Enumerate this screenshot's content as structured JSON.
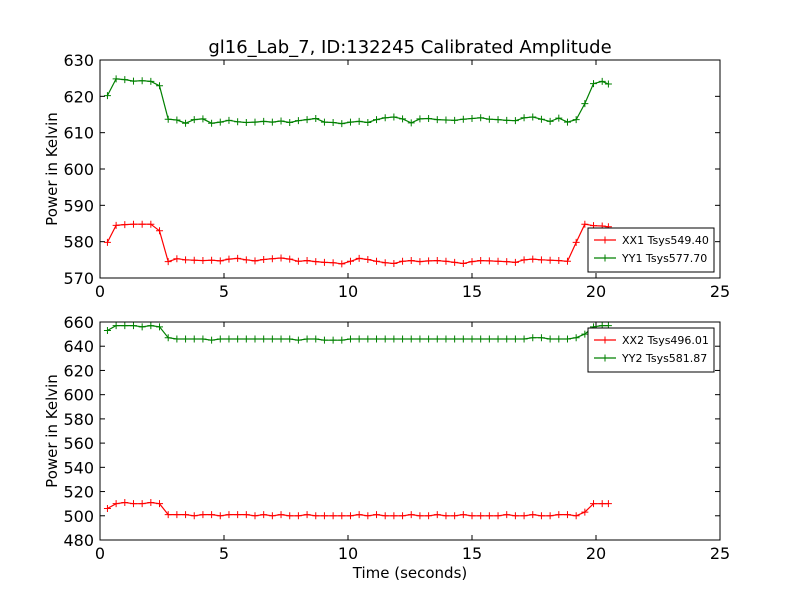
{
  "title": "gl16_Lab_7, ID:132245 Calibrated Amplitude",
  "chart_data": [
    {
      "type": "line",
      "title": "gl16_Lab_7, ID:132245 Calibrated Amplitude",
      "xlabel": "",
      "ylabel": "Power in Kelvin",
      "xlim": [
        0,
        25
      ],
      "ylim": [
        570,
        630
      ],
      "xticks": [
        "0",
        "5",
        "10",
        "15",
        "20",
        "25"
      ],
      "yticks": [
        "570",
        "580",
        "590",
        "600",
        "610",
        "620",
        "630"
      ],
      "grid": false,
      "legend_position": "lower-right",
      "x": [
        0.3,
        0.65,
        1.0,
        1.35,
        1.7,
        2.05,
        2.4,
        2.75,
        3.1,
        3.45,
        3.8,
        4.15,
        4.5,
        4.85,
        5.2,
        5.55,
        5.9,
        6.25,
        6.6,
        6.95,
        7.3,
        7.65,
        8.0,
        8.35,
        8.7,
        9.05,
        9.4,
        9.75,
        10.1,
        10.45,
        10.8,
        11.15,
        11.5,
        11.85,
        12.2,
        12.55,
        12.9,
        13.25,
        13.6,
        13.95,
        14.3,
        14.65,
        15.0,
        15.35,
        15.7,
        16.05,
        16.4,
        16.75,
        17.1,
        17.45,
        17.8,
        18.15,
        18.5,
        18.85,
        19.2,
        19.55,
        19.9,
        20.25,
        20.5
      ],
      "series": [
        {
          "name": "XX1 Tsys549.40",
          "color": "#ff0000",
          "values": [
            579.8,
            584.5,
            584.7,
            584.8,
            584.8,
            584.8,
            583.0,
            574.5,
            575.3,
            575.0,
            574.9,
            574.8,
            574.9,
            574.7,
            575.2,
            575.4,
            575.0,
            574.7,
            575.1,
            575.3,
            575.5,
            575.2,
            574.6,
            574.8,
            574.5,
            574.3,
            574.2,
            573.9,
            574.6,
            575.4,
            575.1,
            574.6,
            574.2,
            574.0,
            574.6,
            574.8,
            574.5,
            574.7,
            574.8,
            574.6,
            574.3,
            574.0,
            574.5,
            574.8,
            574.7,
            574.6,
            574.5,
            574.3,
            575.0,
            575.2,
            575.0,
            574.9,
            574.8,
            574.6,
            579.8,
            584.8,
            584.4,
            584.3,
            584.1
          ]
        },
        {
          "name": "YY1 Tsys577.70",
          "color": "#008000",
          "values": [
            620.2,
            624.8,
            624.6,
            624.2,
            624.3,
            624.1,
            622.9,
            613.7,
            613.5,
            612.6,
            613.6,
            613.8,
            612.6,
            612.9,
            613.4,
            613.0,
            612.8,
            612.9,
            613.1,
            612.9,
            613.2,
            612.8,
            613.3,
            613.6,
            613.9,
            612.9,
            612.8,
            612.5,
            612.9,
            613.1,
            612.8,
            613.6,
            614.1,
            614.3,
            613.8,
            612.7,
            613.8,
            613.9,
            613.6,
            613.5,
            613.4,
            613.7,
            613.9,
            614.1,
            613.7,
            613.6,
            613.4,
            613.3,
            614.1,
            614.3,
            613.7,
            613.1,
            614.0,
            612.9,
            613.6,
            618.0,
            623.5,
            624.1,
            623.4
          ]
        }
      ],
      "legend": [
        "XX1 Tsys549.40",
        "YY1 Tsys577.70"
      ]
    },
    {
      "type": "line",
      "title": "",
      "xlabel": "Time (seconds)",
      "ylabel": "Power in Kelvin",
      "xlim": [
        0,
        25
      ],
      "ylim": [
        480,
        660
      ],
      "xticks": [
        "0",
        "5",
        "10",
        "15",
        "20",
        "25"
      ],
      "yticks": [
        "480",
        "500",
        "520",
        "540",
        "560",
        "580",
        "600",
        "620",
        "640",
        "660"
      ],
      "grid": false,
      "legend_position": "top-right",
      "x": [
        0.3,
        0.65,
        1.0,
        1.35,
        1.7,
        2.05,
        2.4,
        2.75,
        3.1,
        3.45,
        3.8,
        4.15,
        4.5,
        4.85,
        5.2,
        5.55,
        5.9,
        6.25,
        6.6,
        6.95,
        7.3,
        7.65,
        8.0,
        8.35,
        8.7,
        9.05,
        9.4,
        9.75,
        10.1,
        10.45,
        10.8,
        11.15,
        11.5,
        11.85,
        12.2,
        12.55,
        12.9,
        13.25,
        13.6,
        13.95,
        14.3,
        14.65,
        15.0,
        15.35,
        15.7,
        16.05,
        16.4,
        16.75,
        17.1,
        17.45,
        17.8,
        18.15,
        18.5,
        18.85,
        19.2,
        19.55,
        19.9,
        20.25,
        20.5
      ],
      "series": [
        {
          "name": "XX2 Tsys496.01",
          "color": "#ff0000",
          "values": [
            506,
            510,
            511,
            510,
            510,
            511,
            510,
            501,
            501,
            501,
            500,
            501,
            501,
            500,
            501,
            501,
            501,
            500,
            501,
            500,
            501,
            500,
            500,
            501,
            500,
            500,
            500,
            500,
            500,
            501,
            500,
            501,
            500,
            500,
            500,
            501,
            500,
            500,
            501,
            500,
            500,
            501,
            500,
            500,
            500,
            500,
            501,
            500,
            500,
            501,
            500,
            500,
            501,
            501,
            500,
            503,
            510,
            510,
            510
          ]
        },
        {
          "name": "YY2 Tsys581.87",
          "color": "#008000",
          "values": [
            653,
            657,
            657,
            657,
            656,
            657,
            656,
            647,
            646,
            646,
            646,
            646,
            645,
            646,
            646,
            646,
            646,
            646,
            646,
            646,
            646,
            646,
            645,
            646,
            646,
            645,
            645,
            645,
            646,
            646,
            646,
            646,
            646,
            646,
            646,
            646,
            646,
            646,
            646,
            646,
            646,
            646,
            646,
            646,
            646,
            646,
            646,
            646,
            646,
            647,
            647,
            646,
            646,
            646,
            647,
            650,
            656,
            657,
            657
          ]
        }
      ],
      "legend": [
        "XX2 Tsys496.01",
        "YY2 Tsys581.87"
      ]
    }
  ]
}
